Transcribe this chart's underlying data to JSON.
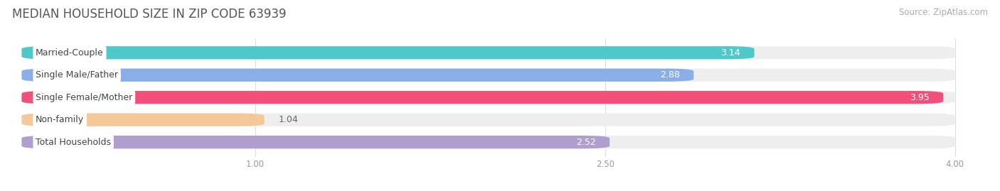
{
  "title": "MEDIAN HOUSEHOLD SIZE IN ZIP CODE 63939",
  "source": "Source: ZipAtlas.com",
  "categories": [
    "Married-Couple",
    "Single Male/Father",
    "Single Female/Mother",
    "Non-family",
    "Total Households"
  ],
  "values": [
    3.14,
    2.88,
    3.95,
    1.04,
    2.52
  ],
  "bar_colors": [
    "#4ec8c8",
    "#8aaee8",
    "#f0507a",
    "#f5c89a",
    "#b09ece"
  ],
  "xlim_data": [
    0.0,
    4.0
  ],
  "xticks": [
    1.0,
    2.5,
    4.0
  ],
  "xtick_labels": [
    "1.00",
    "2.50",
    "4.00"
  ],
  "bar_height": 0.58,
  "title_fontsize": 12,
  "source_fontsize": 8.5,
  "label_fontsize": 9,
  "value_fontsize": 9,
  "background_color": "#ffffff",
  "bar_bg_color": "#eeeeee",
  "value_label_inside_color": "white",
  "value_label_outside_color": "#666666"
}
